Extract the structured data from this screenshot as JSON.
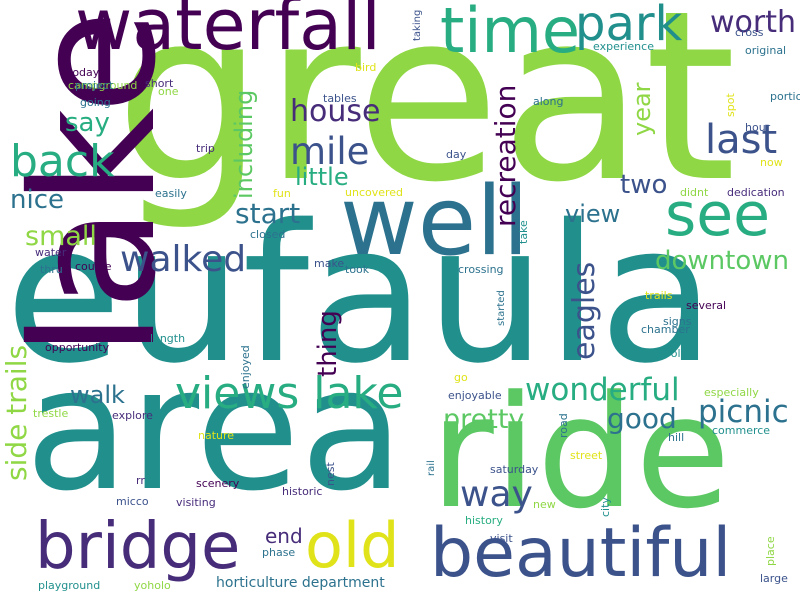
{
  "palette": {
    "dark_purple": "#440154",
    "purple": "#472c7a",
    "indigo": "#3b528b",
    "blue": "#2c728e",
    "teal": "#21908d",
    "sea_green": "#27ad81",
    "green": "#5cc863",
    "lime": "#8fd744",
    "yellow": "#e0e31a"
  },
  "words": [
    {
      "text": "great",
      "color": "#8fd744"
    },
    {
      "text": "eufaula",
      "color": "#21908d"
    },
    {
      "text": "area",
      "color": "#21908d"
    },
    {
      "text": "ride",
      "color": "#5cc863"
    },
    {
      "text": "well",
      "color": "#2c728e"
    },
    {
      "text": "waterfall",
      "color": "#440154"
    },
    {
      "text": "lake",
      "color": "#440154"
    },
    {
      "text": "time",
      "color": "#27ad81"
    },
    {
      "text": "park",
      "color": "#21908d"
    },
    {
      "text": "worth",
      "color": "#472c7a"
    },
    {
      "text": "see",
      "color": "#27ad81"
    },
    {
      "text": "beautiful",
      "color": "#3b528b"
    },
    {
      "text": "bridge",
      "color": "#472c7a"
    },
    {
      "text": "old",
      "color": "#e0e31a"
    },
    {
      "text": "views lake",
      "color": "#27ad81"
    },
    {
      "text": "back",
      "color": "#27ad81"
    },
    {
      "text": "mile",
      "color": "#3b528b"
    },
    {
      "text": "last",
      "color": "#3b528b"
    },
    {
      "text": "house",
      "color": "#472c7a"
    },
    {
      "text": "say",
      "color": "#27ad81"
    },
    {
      "text": "including",
      "color": "#5cc863"
    },
    {
      "text": "little",
      "color": "#27ad81"
    },
    {
      "text": "year",
      "color": "#8fd744"
    },
    {
      "text": "recreation",
      "color": "#440154"
    },
    {
      "text": "two",
      "color": "#3b528b"
    },
    {
      "text": "nice",
      "color": "#2c728e"
    },
    {
      "text": "start",
      "color": "#2c728e"
    },
    {
      "text": "view",
      "color": "#2c728e"
    },
    {
      "text": "small",
      "color": "#8fd744"
    },
    {
      "text": "walked",
      "color": "#3b528b"
    },
    {
      "text": "downtown",
      "color": "#5cc863"
    },
    {
      "text": "eagles",
      "color": "#3b528b"
    },
    {
      "text": "thing",
      "color": "#440154"
    },
    {
      "text": "side trails",
      "color": "#8fd744"
    },
    {
      "text": "walk",
      "color": "#2c728e"
    },
    {
      "text": "wonderful",
      "color": "#27ad81"
    },
    {
      "text": "pretty",
      "color": "#5cc863"
    },
    {
      "text": "good",
      "color": "#2c728e"
    },
    {
      "text": "picnic",
      "color": "#2c728e"
    },
    {
      "text": "way",
      "color": "#3b528b"
    },
    {
      "text": "end",
      "color": "#472c7a"
    },
    {
      "text": "cross",
      "color": "#3b528b"
    },
    {
      "text": "original",
      "color": "#2c728e"
    },
    {
      "text": "experience",
      "color": "#21908d"
    },
    {
      "text": "taking",
      "color": "#3b528b"
    },
    {
      "text": "campground",
      "color": "#8fd744"
    },
    {
      "text": "short",
      "color": "#472c7a"
    },
    {
      "text": "bird",
      "color": "#e0e31a"
    },
    {
      "text": "today",
      "color": "#440154"
    },
    {
      "text": "project",
      "color": "#2c728e"
    },
    {
      "text": "one",
      "color": "#8fd744"
    },
    {
      "text": "going",
      "color": "#2c728e"
    },
    {
      "text": "tables",
      "color": "#3b528b"
    },
    {
      "text": "along",
      "color": "#2c728e"
    },
    {
      "text": "spot",
      "color": "#e0e31a"
    },
    {
      "text": "portion",
      "color": "#2c728e"
    },
    {
      "text": "hour",
      "color": "#3b528b"
    },
    {
      "text": "trip",
      "color": "#472c7a"
    },
    {
      "text": "day",
      "color": "#3b528b"
    },
    {
      "text": "now",
      "color": "#e0e31a"
    },
    {
      "text": "easily",
      "color": "#2c728e"
    },
    {
      "text": "fun",
      "color": "#e0e31a"
    },
    {
      "text": "uncovered",
      "color": "#e0e31a"
    },
    {
      "text": "didnt",
      "color": "#8fd744"
    },
    {
      "text": "dedication",
      "color": "#472c7a"
    },
    {
      "text": "closed",
      "color": "#2c728e"
    },
    {
      "text": "take",
      "color": "#21908d"
    },
    {
      "text": "water",
      "color": "#472c7a"
    },
    {
      "text": "couple",
      "color": "#440154"
    },
    {
      "text": "thru",
      "color": "#2c728e"
    },
    {
      "text": "make",
      "color": "#3b528b"
    },
    {
      "text": "took",
      "color": "#2c728e"
    },
    {
      "text": "crossing",
      "color": "#2c728e"
    },
    {
      "text": "started",
      "color": "#2c728e"
    },
    {
      "text": "trails",
      "color": "#e0e31a"
    },
    {
      "text": "several",
      "color": "#440154"
    },
    {
      "text": "chamber",
      "color": "#2c728e"
    },
    {
      "text": "signs",
      "color": "#2c728e"
    },
    {
      "text": "length",
      "color": "#21908d"
    },
    {
      "text": "opportunity",
      "color": "#440154"
    },
    {
      "text": "cool",
      "color": "#21908d"
    },
    {
      "text": "enjoyed",
      "color": "#2c728e"
    },
    {
      "text": "go",
      "color": "#e0e31a"
    },
    {
      "text": "especially",
      "color": "#8fd744"
    },
    {
      "text": "enjoyable",
      "color": "#3b528b"
    },
    {
      "text": "road",
      "color": "#2c728e"
    },
    {
      "text": "trestle",
      "color": "#8fd744"
    },
    {
      "text": "explore",
      "color": "#472c7a"
    },
    {
      "text": "hill",
      "color": "#2c728e"
    },
    {
      "text": "commerce",
      "color": "#21908d"
    },
    {
      "text": "nature",
      "color": "#e0e31a"
    },
    {
      "text": "nest",
      "color": "#3b528b"
    },
    {
      "text": "street",
      "color": "#e0e31a"
    },
    {
      "text": "rr",
      "color": "#472c7a"
    },
    {
      "text": "scenery",
      "color": "#440154"
    },
    {
      "text": "rail",
      "color": "#2c728e"
    },
    {
      "text": "saturday",
      "color": "#3b528b"
    },
    {
      "text": "micco",
      "color": "#3b528b"
    },
    {
      "text": "visiting",
      "color": "#472c7a"
    },
    {
      "text": "historic",
      "color": "#472c7a"
    },
    {
      "text": "city",
      "color": "#21908d"
    },
    {
      "text": "new",
      "color": "#8fd744"
    },
    {
      "text": "history",
      "color": "#27ad81"
    },
    {
      "text": "visit",
      "color": "#3b528b"
    },
    {
      "text": "place",
      "color": "#8fd744"
    },
    {
      "text": "phase",
      "color": "#2c728e"
    },
    {
      "text": "large",
      "color": "#3b528b"
    },
    {
      "text": "playground",
      "color": "#21908d"
    },
    {
      "text": "yoholo",
      "color": "#8fd744"
    },
    {
      "text": "horticulture department",
      "color": "#2c728e"
    }
  ]
}
